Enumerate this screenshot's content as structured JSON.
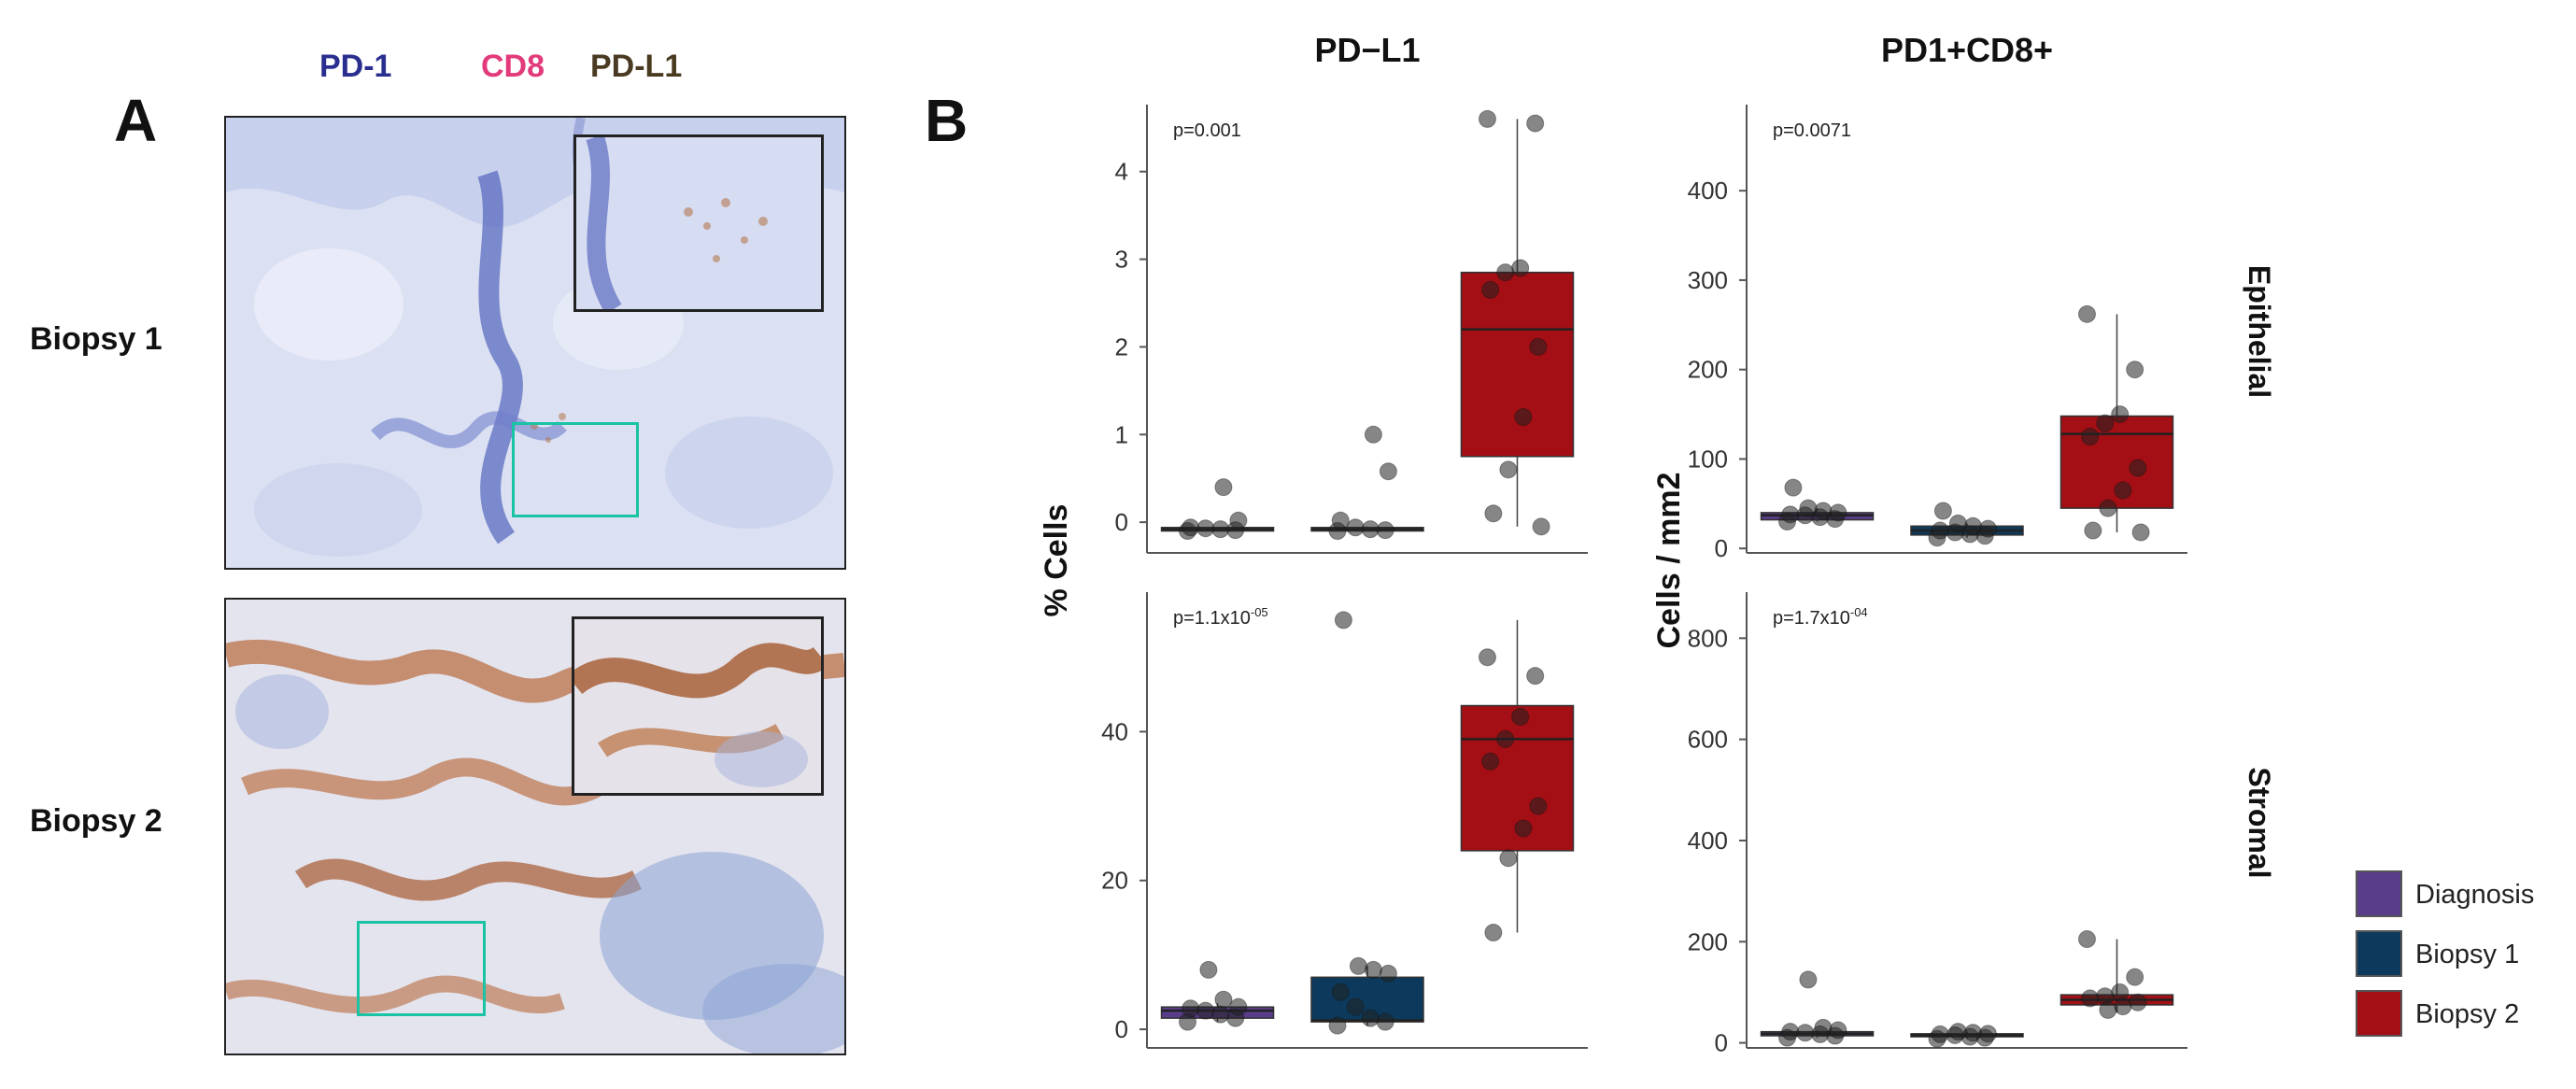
{
  "panel_a": {
    "letter": "A",
    "stains": [
      {
        "label": "PD-1",
        "color": "#2a2f8f"
      },
      {
        "label": "CD8",
        "color": "#e23a7a"
      },
      {
        "label": "PD-L1",
        "color": "#4a3a22"
      }
    ],
    "rows": [
      "Biopsy 1",
      "Biopsy 2"
    ]
  },
  "panel_b": {
    "letter": "B"
  },
  "legend": [
    {
      "label": "Diagnosis",
      "color": "#5a3d8a"
    },
    {
      "label": "Biopsy 1",
      "color": "#0d3a5c"
    },
    {
      "label": "Biopsy 2",
      "color": "#a30f14"
    }
  ],
  "chart_data": [
    {
      "type": "box",
      "id": "pdl1-epithelial",
      "title": "PD−L1",
      "ylabel": "% Cells",
      "facet": "",
      "categories": [
        "Diagnosis",
        "Biopsy 1",
        "Biopsy 2"
      ],
      "ylim": [
        -0.35,
        4.7
      ],
      "yticks": [
        0,
        1,
        2,
        3,
        4
      ],
      "pvalue": "p=0.001",
      "boxes": [
        {
          "group": "Diagnosis",
          "q1": -0.1,
          "median": -0.08,
          "q3": -0.06,
          "min": -0.1,
          "max": -0.06,
          "points": [
            -0.1,
            -0.09,
            -0.08,
            -0.07,
            -0.06,
            0.02,
            0.4
          ]
        },
        {
          "group": "Biopsy 1",
          "q1": -0.1,
          "median": -0.08,
          "q3": -0.06,
          "min": -0.1,
          "max": -0.05,
          "points": [
            -0.1,
            -0.09,
            -0.08,
            -0.06,
            0.02,
            0.58,
            1.0
          ]
        },
        {
          "group": "Biopsy 2",
          "q1": 0.75,
          "median": 2.2,
          "q3": 2.85,
          "min": -0.05,
          "max": 4.6,
          "points": [
            4.6,
            4.55,
            2.9,
            2.85,
            2.65,
            2.0,
            1.2,
            0.6,
            0.1,
            -0.05
          ]
        }
      ]
    },
    {
      "type": "box",
      "id": "pd1cd8-epithelial",
      "title": "PD1+CD8+",
      "ylabel": "Cells / mm2",
      "facet": "Epithelial",
      "categories": [
        "Diagnosis",
        "Biopsy 1",
        "Biopsy 2"
      ],
      "ylim": [
        -5,
        490
      ],
      "yticks": [
        0,
        100,
        200,
        300,
        400
      ],
      "pvalue": "p=0.0071",
      "boxes": [
        {
          "group": "Diagnosis",
          "q1": 32,
          "median": 37,
          "q3": 40,
          "min": 30,
          "max": 45,
          "points": [
            30,
            33,
            35,
            37,
            38,
            40,
            42,
            45,
            68
          ]
        },
        {
          "group": "Biopsy 1",
          "q1": 15,
          "median": 20,
          "q3": 25,
          "min": 12,
          "max": 28,
          "points": [
            12,
            14,
            16,
            18,
            20,
            22,
            25,
            28,
            42
          ]
        },
        {
          "group": "Biopsy 2",
          "q1": 45,
          "median": 128,
          "q3": 148,
          "min": 18,
          "max": 262,
          "points": [
            262,
            200,
            150,
            140,
            125,
            90,
            65,
            45,
            20,
            18
          ]
        }
      ]
    },
    {
      "type": "box",
      "id": "pdl1-stromal",
      "title": "",
      "ylabel": "",
      "facet": "",
      "categories": [
        "Diagnosis",
        "Biopsy 1",
        "Biopsy 2"
      ],
      "ylim": [
        -2.5,
        58
      ],
      "yticks": [
        0,
        20,
        40
      ],
      "pvalue": "p=1.1x10",
      "pvalue_exp": "-05",
      "boxes": [
        {
          "group": "Diagnosis",
          "q1": 1.5,
          "median": 2.5,
          "q3": 3.0,
          "min": 1.0,
          "max": 3.5,
          "points": [
            1.0,
            1.5,
            2.0,
            2.5,
            2.8,
            3.0,
            4.0,
            8.0
          ]
        },
        {
          "group": "Biopsy 1",
          "q1": 1.0,
          "median": 1.2,
          "q3": 7.0,
          "min": 0.5,
          "max": 8.5,
          "points": [
            0.5,
            1.0,
            1.5,
            3.0,
            5.0,
            7.5,
            8.0,
            8.5,
            55.0
          ]
        },
        {
          "group": "Biopsy 2",
          "q1": 24.0,
          "median": 39.0,
          "q3": 43.5,
          "min": 13.0,
          "max": 55.0,
          "points": [
            50.0,
            47.5,
            42.0,
            39.0,
            36.0,
            30.0,
            27.0,
            23.0,
            13.0
          ]
        }
      ]
    },
    {
      "type": "box",
      "id": "pd1cd8-stromal",
      "title": "",
      "ylabel": "",
      "facet": "Stromal",
      "categories": [
        "Diagnosis",
        "Biopsy 1",
        "Biopsy 2"
      ],
      "ylim": [
        -10,
        880
      ],
      "yticks": [
        0,
        200,
        400,
        600,
        800
      ],
      "pvalue": "p=1.7x10",
      "pvalue_exp": "-04",
      "boxes": [
        {
          "group": "Diagnosis",
          "q1": 14,
          "median": 18,
          "q3": 22,
          "min": 10,
          "max": 25,
          "points": [
            10,
            14,
            17,
            20,
            22,
            25,
            30,
            125
          ]
        },
        {
          "group": "Biopsy 1",
          "q1": 12,
          "median": 15,
          "q3": 18,
          "min": 8,
          "max": 22,
          "points": [
            8,
            10,
            12,
            15,
            17,
            18,
            20,
            22
          ]
        },
        {
          "group": "Biopsy 2",
          "q1": 75,
          "median": 85,
          "q3": 95,
          "min": 60,
          "max": 205,
          "points": [
            205,
            130,
            100,
            92,
            88,
            80,
            72,
            65
          ]
        }
      ]
    }
  ]
}
